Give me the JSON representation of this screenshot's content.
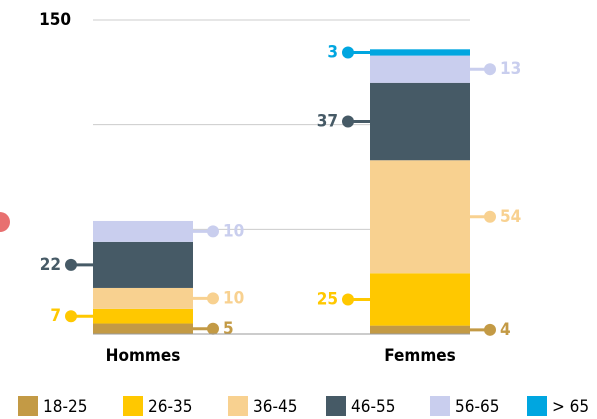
{
  "chart_data": {
    "type": "stacked_bar",
    "categories": [
      "Hommes",
      "Femmes"
    ],
    "series": [
      {
        "name": "18-25",
        "color": "#c39a45",
        "values": [
          5,
          4
        ]
      },
      {
        "name": "26-35",
        "color": "#ffc800",
        "values": [
          7,
          25
        ]
      },
      {
        "name": "36-45",
        "color": "#f8d190",
        "values": [
          10,
          54
        ]
      },
      {
        "name": "46-55",
        "color": "#465a66",
        "values": [
          22,
          37
        ]
      },
      {
        "name": "56-65",
        "color": "#c9ceee",
        "values": [
          10,
          13
        ]
      },
      {
        "name": "> 65",
        "color": "#00a6e0",
        "values": [
          null,
          3
        ]
      }
    ],
    "ylim": [
      0,
      150
    ],
    "yticks": [
      150
    ],
    "gridlines": [
      50,
      100,
      150
    ],
    "grid": true
  }
}
